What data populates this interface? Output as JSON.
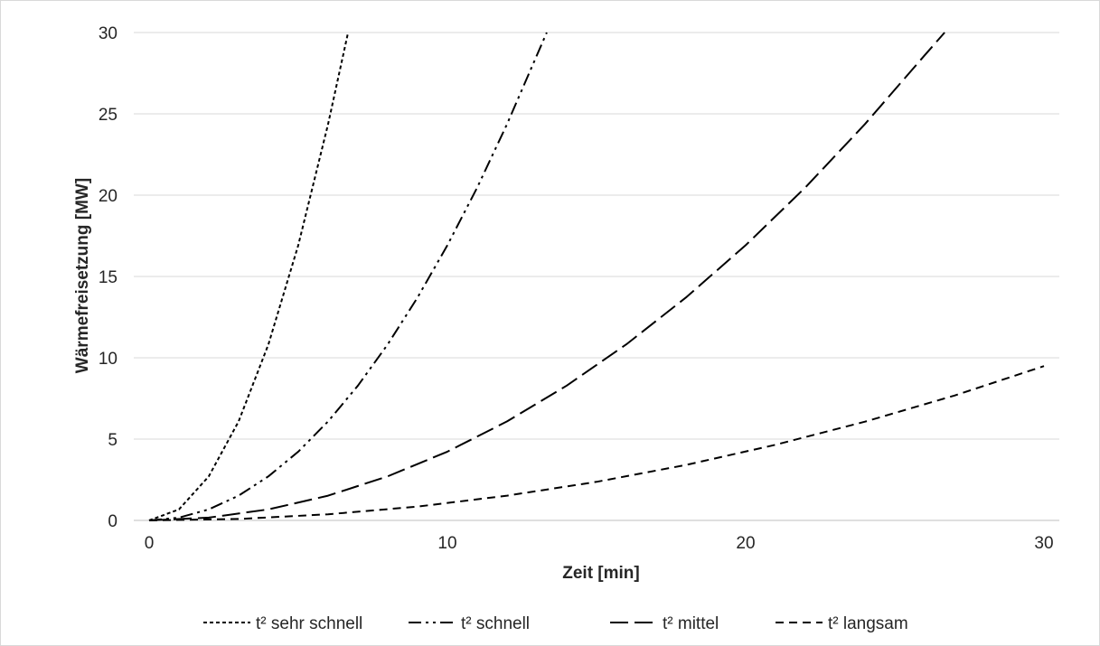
{
  "chart_data": {
    "type": "line",
    "xlabel": "Zeit [min]",
    "ylabel": "Wärmefreisetzung [MW]",
    "xlim": [
      0,
      30
    ],
    "ylim": [
      0,
      30
    ],
    "xticks": [
      0,
      10,
      20,
      30
    ],
    "yticks": [
      0,
      5,
      10,
      15,
      20,
      25,
      30
    ],
    "grid": "horizontal",
    "legend_position": "bottom",
    "series": [
      {
        "name": "t² sehr schnell",
        "dash": "4,3",
        "x": [
          0,
          1,
          2,
          3,
          4,
          5,
          6,
          6.67
        ],
        "y": [
          0,
          0.68,
          2.71,
          6.09,
          10.83,
          16.92,
          24.37,
          30
        ]
      },
      {
        "name": "t² schnell",
        "dash": "14,5,3,5,3,5",
        "x": [
          0,
          1,
          2,
          3,
          4,
          5,
          6,
          7,
          8,
          9,
          10,
          11,
          12,
          13.33
        ],
        "y": [
          0,
          0.17,
          0.68,
          1.52,
          2.71,
          4.23,
          6.09,
          8.29,
          10.83,
          13.71,
          16.92,
          20.47,
          24.37,
          30
        ]
      },
      {
        "name": "t² mittel",
        "dash": "20,7",
        "x": [
          0,
          2,
          4,
          6,
          8,
          10,
          12,
          14,
          16,
          18,
          20,
          22,
          24,
          26,
          26.67
        ],
        "y": [
          0,
          0.17,
          0.68,
          1.52,
          2.71,
          4.23,
          6.09,
          8.29,
          10.83,
          13.71,
          16.92,
          20.47,
          24.37,
          28.6,
          30
        ]
      },
      {
        "name": "t² langsam",
        "dash": "9,6",
        "x": [
          0,
          3,
          6,
          9,
          12,
          15,
          18,
          21,
          24,
          27,
          30
        ],
        "y": [
          0,
          0.09,
          0.38,
          0.85,
          1.52,
          2.37,
          3.41,
          4.65,
          6.07,
          7.68,
          9.49
        ]
      }
    ]
  }
}
